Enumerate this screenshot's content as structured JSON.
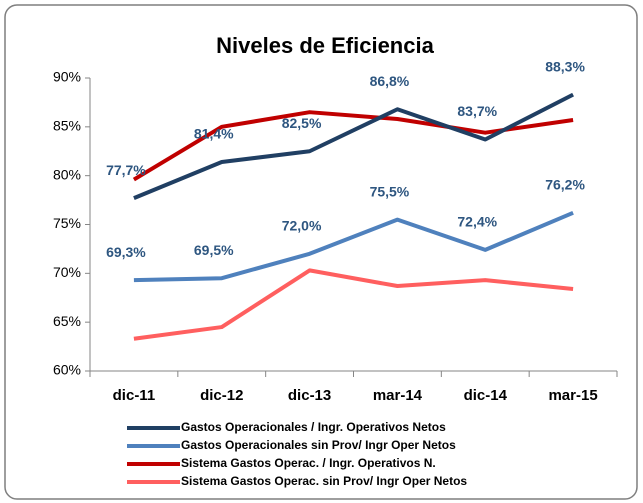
{
  "chart_data": {
    "type": "line",
    "title": "Niveles de Eficiencia",
    "categories": [
      "dic-11",
      "dic-12",
      "dic-13",
      "mar-14",
      "dic-14",
      "mar-15"
    ],
    "ylim": [
      60,
      90
    ],
    "yticks": [
      {
        "value": 60,
        "label": "60%"
      },
      {
        "value": 65,
        "label": "65%"
      },
      {
        "value": 70,
        "label": "70%"
      },
      {
        "value": 75,
        "label": "75%"
      },
      {
        "value": 80,
        "label": "80%"
      },
      {
        "value": 85,
        "label": "85%"
      },
      {
        "value": 90,
        "label": "90%"
      }
    ],
    "legend": "bottom",
    "series": [
      {
        "name": "Gastos Operacionales / Ingr. Operativos Netos",
        "color": "#203f63",
        "values": [
          77.7,
          81.4,
          82.5,
          86.8,
          83.7,
          88.3
        ],
        "value_labels": [
          "77,7%",
          "81,4%",
          "82,5%",
          "86,8%",
          "83,7%",
          "88,3%"
        ]
      },
      {
        "name": "Gastos Operacionales sin Prov/ Ingr Oper Netos",
        "color": "#4f81bd",
        "values": [
          69.3,
          69.5,
          72.0,
          75.5,
          72.4,
          76.2
        ],
        "value_labels": [
          "69,3%",
          "69,5%",
          "72,0%",
          "75,5%",
          "72,4%",
          "76,2%"
        ]
      },
      {
        "name": "Sistema Gastos Operac. / Ingr. Operativos N.",
        "color": "#c00000",
        "values": [
          79.6,
          85.0,
          86.5,
          85.8,
          84.4,
          85.7
        ]
      },
      {
        "name": "Sistema Gastos Operac. sin Prov/ Ingr Oper Netos",
        "color": "#ff5f5f",
        "values": [
          63.3,
          64.5,
          70.3,
          68.7,
          69.3,
          68.4
        ]
      }
    ]
  }
}
